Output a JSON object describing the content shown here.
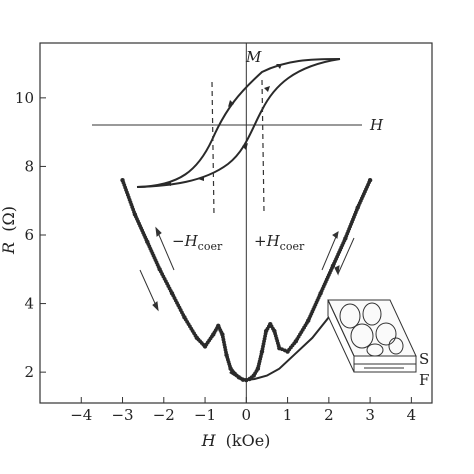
{
  "chart_data": {
    "type": "scatter",
    "title": "",
    "xlabel_var": "H",
    "xlabel_unit": "(kOe)",
    "ylabel_var": "R",
    "ylabel_unit": "(Ω)",
    "xlim": [
      -5,
      4.5
    ],
    "ylim": [
      1.1,
      11.6
    ],
    "xticks": [
      -4,
      -3,
      -2,
      -1,
      0,
      1,
      2,
      3,
      4
    ],
    "xtick_labels": [
      "−4",
      "−3",
      "−2",
      "−1",
      "0",
      "1",
      "2",
      "3",
      "4"
    ],
    "yticks": [
      2,
      4,
      6,
      8,
      10
    ],
    "ytick_labels": [
      "2",
      "4",
      "6",
      "8",
      "10"
    ],
    "grid": false,
    "series": [
      {
        "style": "dotted-markers",
        "x": [
          -3.0,
          -2.7,
          -2.4,
          -2.1,
          -1.8,
          -1.5,
          -1.2,
          -1.0,
          -0.8,
          -0.68,
          -0.58,
          -0.48,
          -0.38,
          -0.28,
          -0.18,
          -0.08,
          0.0,
          0.08,
          0.18,
          0.28,
          0.38,
          0.48,
          0.58,
          0.68,
          0.8,
          1.0,
          1.2,
          1.5,
          1.8,
          2.1,
          2.4,
          2.7,
          3.0
        ],
        "y": [
          7.6,
          6.6,
          5.8,
          5.0,
          4.3,
          3.6,
          3.0,
          2.75,
          3.1,
          3.35,
          3.1,
          2.5,
          2.1,
          1.95,
          1.85,
          1.78,
          1.77,
          1.8,
          1.9,
          2.1,
          2.6,
          3.2,
          3.4,
          3.2,
          2.7,
          2.6,
          2.9,
          3.5,
          4.3,
          5.1,
          5.9,
          6.8,
          7.6
        ]
      },
      {
        "style": "solid-line",
        "x": [
          -0.4,
          -0.2,
          0.0,
          0.2,
          0.5,
          0.8,
          1.2,
          1.6,
          2.0
        ],
        "y": [
          2.0,
          1.85,
          1.77,
          1.8,
          1.9,
          2.1,
          2.55,
          3.0,
          3.6
        ]
      }
    ],
    "inset": {
      "type": "hysteresis",
      "axis_labels": {
        "vertical": "M",
        "horizontal": "H"
      },
      "coercive_labels": {
        "neg": "−H",
        "pos": "+H",
        "subscript": "coer"
      }
    },
    "sample_labels": {
      "top": "S",
      "bottom": "F"
    }
  }
}
